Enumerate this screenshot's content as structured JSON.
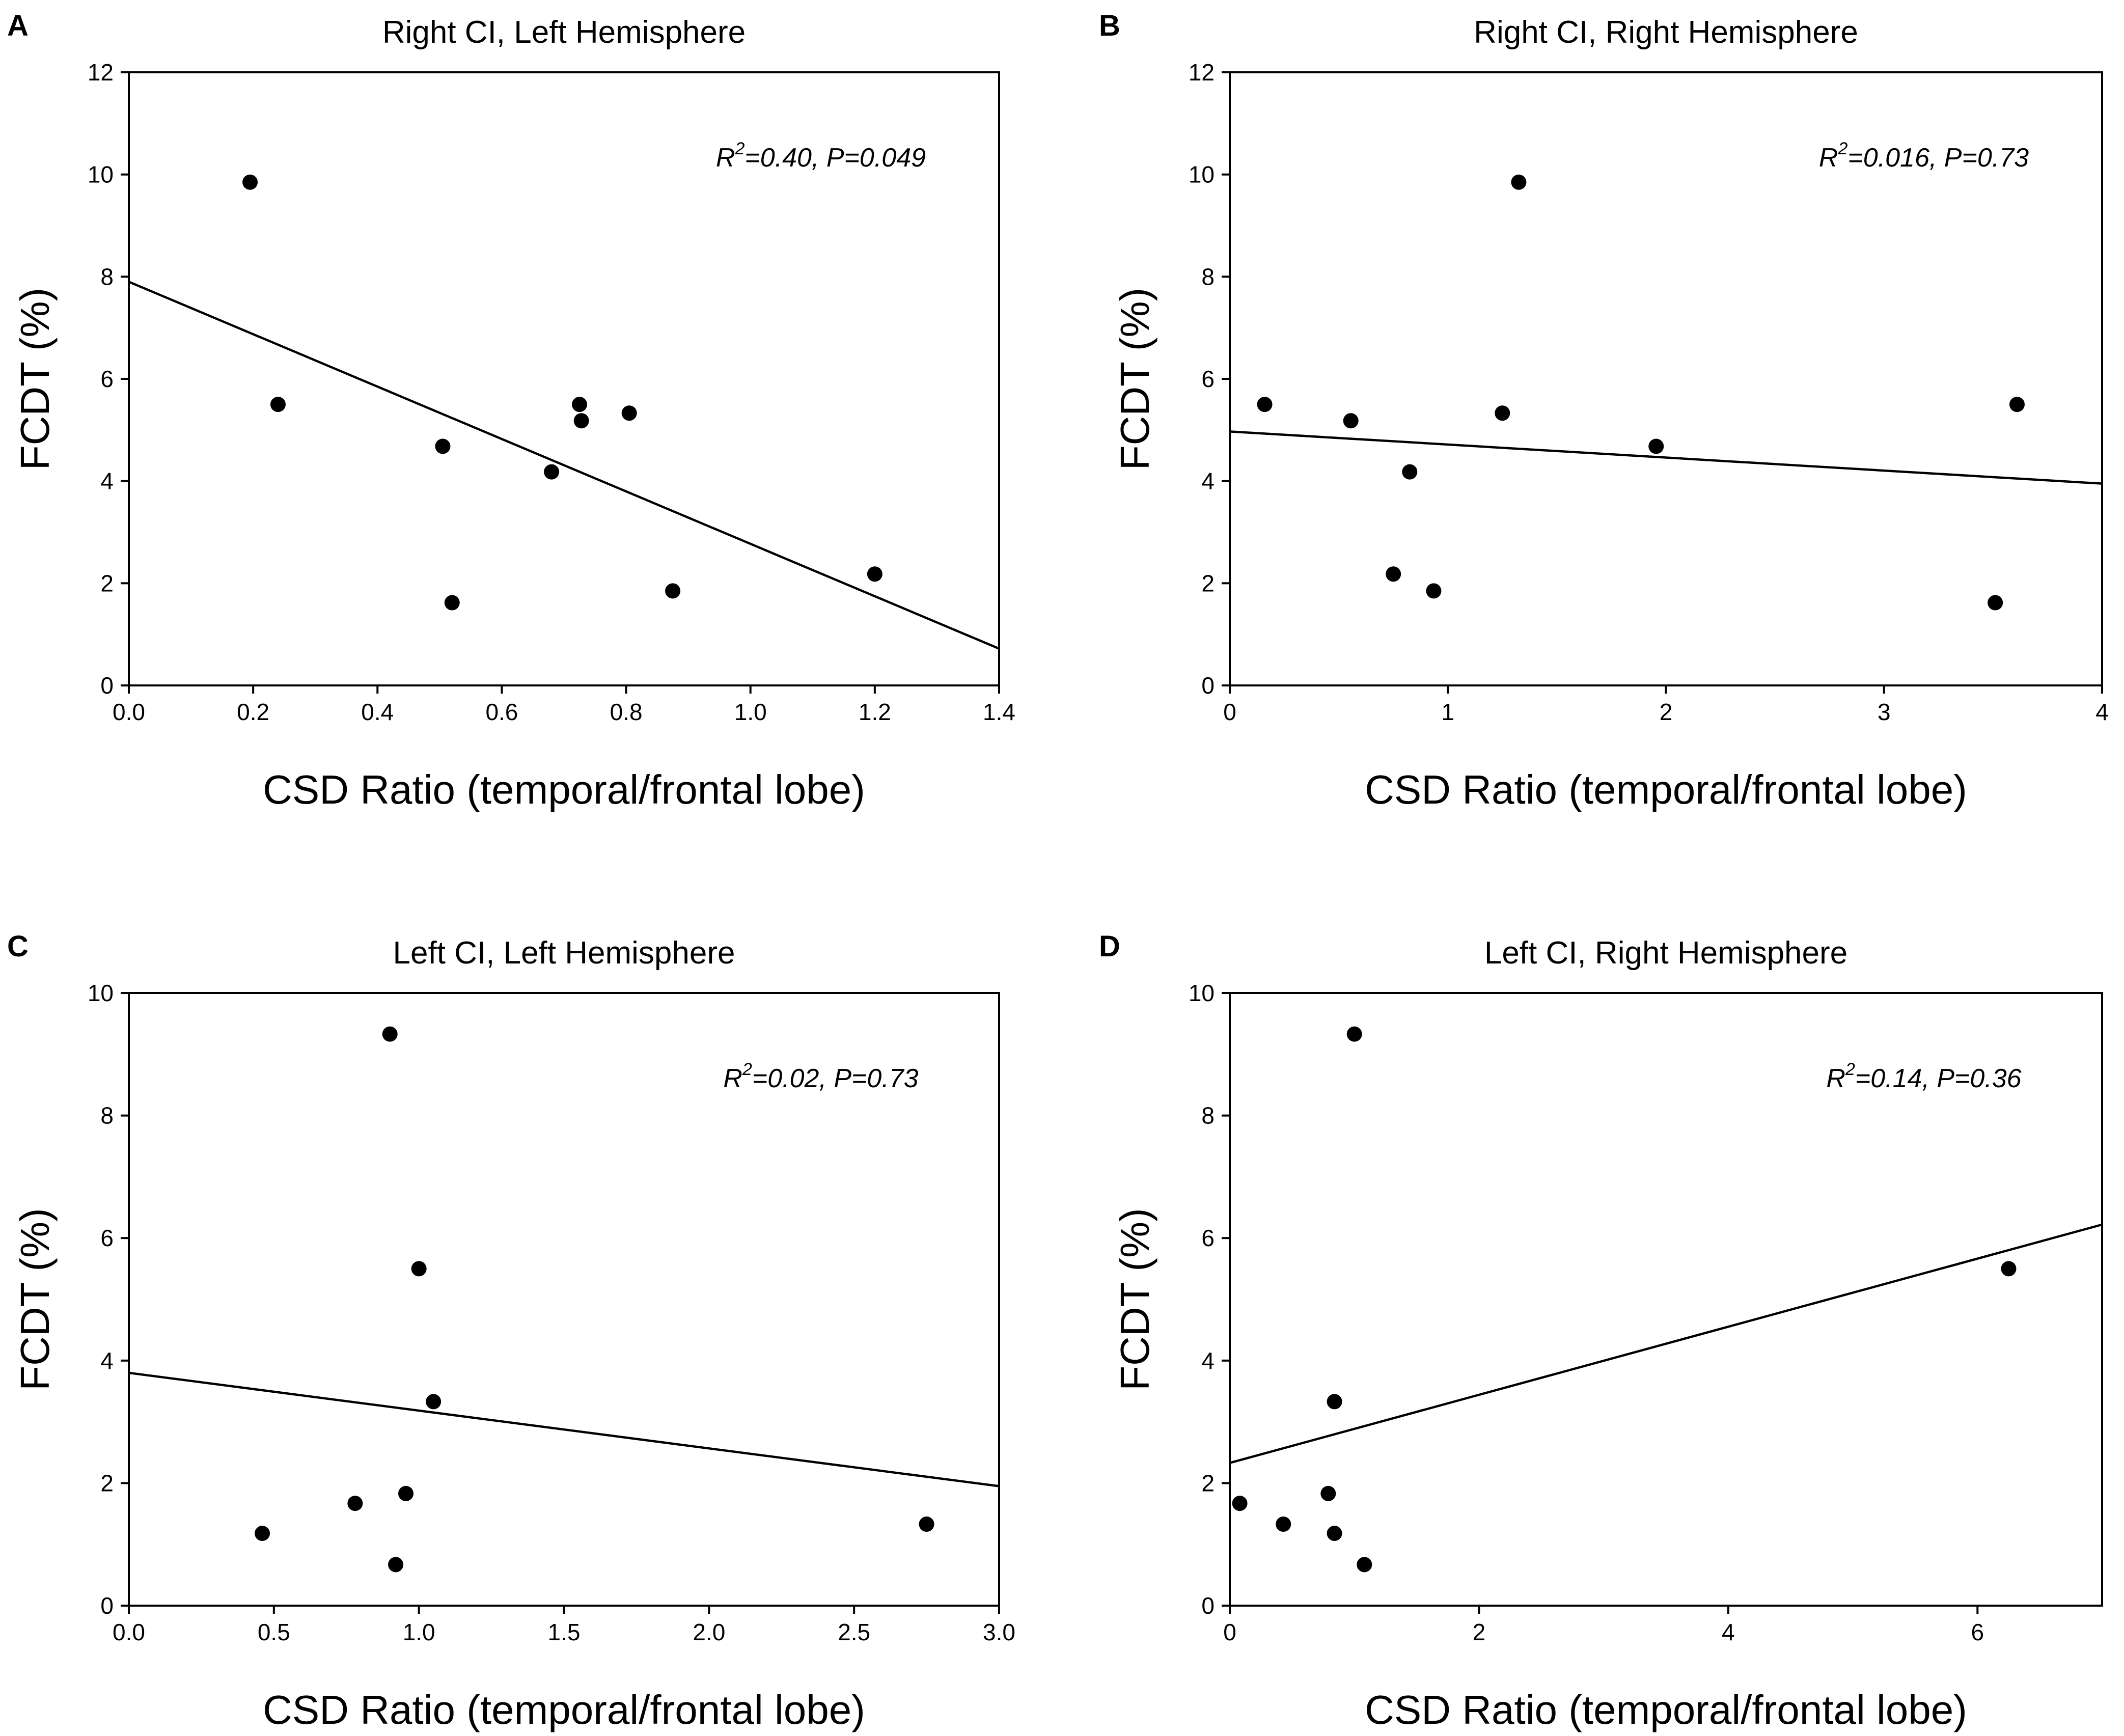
{
  "chart_data": [
    {
      "type": "scatter",
      "panel": "A",
      "title": "Right CI, Left Hemisphere",
      "xlabel": "CSD Ratio (temporal/frontal lobe)",
      "ylabel": "FCDT (%)",
      "xlim": [
        0,
        1.4
      ],
      "ylim": [
        0,
        12
      ],
      "xticks": [
        0.0,
        0.2,
        0.4,
        0.6,
        0.8,
        1.0,
        1.2,
        1.4
      ],
      "xtick_labels": [
        "0.0",
        "0.2",
        "0.4",
        "0.6",
        "0.8",
        "1.0",
        "1.2",
        "1.4"
      ],
      "yticks": [
        0,
        2,
        4,
        6,
        8,
        10,
        12
      ],
      "ytick_labels": [
        "0",
        "2",
        "4",
        "6",
        "8",
        "10",
        "12"
      ],
      "annotation": {
        "r_label": "R",
        "r_sup": "2",
        "text": "=0.40, P=0.049"
      },
      "points": [
        {
          "x": 0.195,
          "y": 9.85
        },
        {
          "x": 0.24,
          "y": 5.5
        },
        {
          "x": 0.505,
          "y": 4.68
        },
        {
          "x": 0.52,
          "y": 1.62
        },
        {
          "x": 0.68,
          "y": 4.18
        },
        {
          "x": 0.725,
          "y": 5.5
        },
        {
          "x": 0.728,
          "y": 5.18
        },
        {
          "x": 0.805,
          "y": 5.33
        },
        {
          "x": 0.875,
          "y": 1.85
        },
        {
          "x": 1.2,
          "y": 2.18
        }
      ],
      "fit_line": {
        "x": [
          0,
          1.4
        ],
        "y": [
          7.9,
          0.72
        ]
      }
    },
    {
      "type": "scatter",
      "panel": "B",
      "title": "Right CI, Right Hemisphere",
      "xlabel": "CSD Ratio (temporal/frontal lobe)",
      "ylabel": "FCDT (%)",
      "xlim": [
        0,
        4
      ],
      "ylim": [
        0,
        12
      ],
      "xticks": [
        0,
        1,
        2,
        3,
        4
      ],
      "xtick_labels": [
        "0",
        "1",
        "2",
        "3",
        "4"
      ],
      "yticks": [
        0,
        2,
        4,
        6,
        8,
        10,
        12
      ],
      "ytick_labels": [
        "0",
        "2",
        "4",
        "6",
        "8",
        "10",
        "12"
      ],
      "annotation": {
        "r_label": "R",
        "r_sup": "2",
        "text": "=0.016, P=0.73"
      },
      "points": [
        {
          "x": 0.16,
          "y": 5.5
        },
        {
          "x": 0.555,
          "y": 5.18
        },
        {
          "x": 0.75,
          "y": 2.18
        },
        {
          "x": 0.825,
          "y": 4.18
        },
        {
          "x": 0.935,
          "y": 1.85
        },
        {
          "x": 1.25,
          "y": 5.33
        },
        {
          "x": 1.325,
          "y": 9.85
        },
        {
          "x": 1.955,
          "y": 4.68
        },
        {
          "x": 3.51,
          "y": 1.62
        },
        {
          "x": 3.61,
          "y": 5.5
        }
      ],
      "fit_line": {
        "x": [
          0,
          4
        ],
        "y": [
          4.97,
          3.95
        ]
      }
    },
    {
      "type": "scatter",
      "panel": "C",
      "title": "Left CI, Left Hemisphere",
      "xlabel": "CSD Ratio (temporal/frontal lobe)",
      "ylabel": "FCDT (%)",
      "xlim": [
        0,
        3
      ],
      "ylim": [
        0,
        10
      ],
      "xticks": [
        0.0,
        0.5,
        1.0,
        1.5,
        2.0,
        2.5,
        3.0
      ],
      "xtick_labels": [
        "0.0",
        "0.5",
        "1.0",
        "1.5",
        "2.0",
        "2.5",
        "3.0"
      ],
      "yticks": [
        0,
        2,
        4,
        6,
        8,
        10
      ],
      "ytick_labels": [
        "0",
        "2",
        "4",
        "6",
        "8",
        "10"
      ],
      "annotation": {
        "r_label": "R",
        "r_sup": "2",
        "text": "=0.02, P=0.73"
      },
      "points": [
        {
          "x": 0.46,
          "y": 1.18
        },
        {
          "x": 0.78,
          "y": 1.67
        },
        {
          "x": 0.9,
          "y": 9.33
        },
        {
          "x": 0.92,
          "y": 0.67
        },
        {
          "x": 0.955,
          "y": 1.83
        },
        {
          "x": 1.0,
          "y": 5.5
        },
        {
          "x": 1.05,
          "y": 3.33
        },
        {
          "x": 2.75,
          "y": 1.33
        }
      ],
      "fit_line": {
        "x": [
          0,
          3
        ],
        "y": [
          3.8,
          1.95
        ]
      }
    },
    {
      "type": "scatter",
      "panel": "D",
      "title": "Left CI, Right Hemisphere",
      "xlabel": "CSD Ratio (temporal/frontal lobe)",
      "ylabel": "FCDT (%)",
      "xlim": [
        0,
        7
      ],
      "ylim": [
        0,
        10
      ],
      "xticks": [
        0,
        2,
        4,
        6
      ],
      "xtick_labels": [
        "0",
        "2",
        "4",
        "6"
      ],
      "yticks": [
        0,
        2,
        4,
        6,
        8,
        10
      ],
      "ytick_labels": [
        "0",
        "2",
        "4",
        "6",
        "8",
        "10"
      ],
      "annotation": {
        "r_label": "R",
        "r_sup": "2",
        "text": "=0.14, P=0.36"
      },
      "points": [
        {
          "x": 0.08,
          "y": 1.67
        },
        {
          "x": 0.43,
          "y": 1.33
        },
        {
          "x": 0.79,
          "y": 1.83
        },
        {
          "x": 0.84,
          "y": 3.33
        },
        {
          "x": 0.84,
          "y": 1.18
        },
        {
          "x": 1.0,
          "y": 9.33
        },
        {
          "x": 1.08,
          "y": 0.67
        },
        {
          "x": 6.25,
          "y": 5.5
        }
      ],
      "fit_line": {
        "x": [
          0,
          7
        ],
        "y": [
          2.33,
          6.22
        ]
      }
    }
  ]
}
